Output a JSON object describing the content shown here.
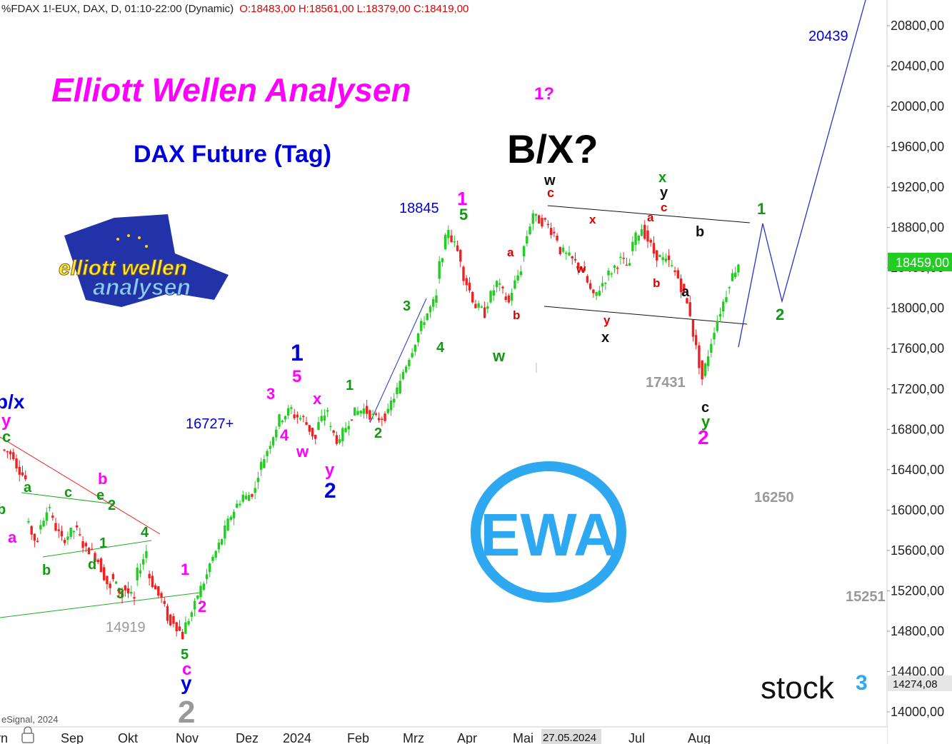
{
  "header": {
    "symbol_info": "%FDAX 1!-EUX, DAX, D, 01:10-22:00 (Dynamic)",
    "ohlc": "O:18483,00 H:18561,00 L:18379,00 C:18419,00",
    "copyright": "eSignal, 2024"
  },
  "titles": {
    "main": "Elliott Wellen Analysen",
    "sub": "DAX Future (Tag)",
    "question": "B/X?",
    "one_question": "1?"
  },
  "logos": {
    "left_line1": "elliott wellen",
    "left_line2": "analysen",
    "ewa": "EWA",
    "stock3": "stock",
    "stock3_sup": "3"
  },
  "price_axis": {
    "ticks": [
      "20800,00",
      "20400,00",
      "20000,00",
      "19600,00",
      "19200,00",
      "18800,00",
      "18400,00",
      "18000,00",
      "17600,00",
      "17200,00",
      "16800,00",
      "16400,00",
      "16000,00",
      "15600,00",
      "15200,00",
      "14800,00",
      "14400,00",
      "14000,00"
    ],
    "current_price": "18459,00",
    "cursor_price": "14274,08"
  },
  "time_axis": {
    "labels": [
      "Sep",
      "Okt",
      "Nov",
      "Dez",
      "2024",
      "Feb",
      "Mrz",
      "Apr",
      "Mai",
      "Jul",
      "Aug"
    ],
    "cursor_date": "27.05.2024"
  },
  "levels": {
    "l20439": "20439",
    "l18845": "18845",
    "l16727": "16727+",
    "l17431": "17431",
    "l16250": "16250",
    "l15251": "15251",
    "l14919": "14919"
  },
  "colors": {
    "up": "#22cc22",
    "down": "#ee2222",
    "magenta": "#ff00ff",
    "blue": "#0000dd",
    "green": "#119911",
    "red": "#dd0000",
    "gray": "#999999",
    "ewa": "#2ea8f0"
  },
  "wave_labels": [
    {
      "t": "b/x",
      "c": "#0000dd",
      "s": 28
    },
    {
      "t": "y",
      "c": "#ff00ff",
      "s": 24
    },
    {
      "t": "c",
      "c": "#119911",
      "s": 22
    },
    {
      "t": "b",
      "c": "#119911",
      "s": 20
    },
    {
      "t": "a",
      "c": "#ff00ff",
      "s": 22
    },
    {
      "t": "a",
      "c": "#119911",
      "s": 20
    },
    {
      "t": "b",
      "c": "#119911",
      "s": 20
    },
    {
      "t": "c",
      "c": "#119911",
      "s": 20
    },
    {
      "t": "d",
      "c": "#119911",
      "s": 20
    },
    {
      "t": "b",
      "c": "#ff00ff",
      "s": 22
    },
    {
      "t": "e",
      "c": "#119911",
      "s": 20
    },
    {
      "t": "2",
      "c": "#119911",
      "s": 20
    },
    {
      "t": "1",
      "c": "#119911",
      "s": 20
    },
    {
      "t": "4",
      "c": "#119911",
      "s": 20
    },
    {
      "t": "3",
      "c": "#119911",
      "s": 20
    },
    {
      "t": "1",
      "c": "#ff00ff",
      "s": 22
    },
    {
      "t": "2",
      "c": "#ff00ff",
      "s": 22
    },
    {
      "t": "5",
      "c": "#119911",
      "s": 20
    },
    {
      "t": "c",
      "c": "#ff00ff",
      "s": 24
    },
    {
      "t": "y",
      "c": "#0000dd",
      "s": 28
    },
    {
      "t": "2",
      "c": "#999999",
      "s": 44
    },
    {
      "t": "3",
      "c": "#ff00ff",
      "s": 22
    },
    {
      "t": "4",
      "c": "#ff00ff",
      "s": 22
    },
    {
      "t": "w",
      "c": "#ff00ff",
      "s": 22
    },
    {
      "t": "5",
      "c": "#ff00ff",
      "s": 24
    },
    {
      "t": "1",
      "c": "#0000dd",
      "s": 32
    },
    {
      "t": "x",
      "c": "#ff00ff",
      "s": 22
    },
    {
      "t": "y",
      "c": "#ff00ff",
      "s": 24
    },
    {
      "t": "2",
      "c": "#0000dd",
      "s": 30
    },
    {
      "t": "1",
      "c": "#119911",
      "s": 20
    },
    {
      "t": "2",
      "c": "#119911",
      "s": 20
    },
    {
      "t": "3",
      "c": "#119911",
      "s": 20
    },
    {
      "t": "4",
      "c": "#119911",
      "s": 20
    },
    {
      "t": "1",
      "c": "#ff00ff",
      "s": 26
    },
    {
      "t": "5",
      "c": "#119911",
      "s": 22
    },
    {
      "t": "a",
      "c": "#dd0000",
      "s": 17
    },
    {
      "t": "b",
      "c": "#dd0000",
      "s": 17
    },
    {
      "t": "w",
      "c": "#119911",
      "s": 22
    },
    {
      "t": "w",
      "c": "#111111",
      "s": 20
    },
    {
      "t": "c",
      "c": "#dd0000",
      "s": 18
    },
    {
      "t": "x",
      "c": "#dd0000",
      "s": 17
    },
    {
      "t": "w",
      "c": "#dd0000",
      "s": 17
    },
    {
      "t": "y",
      "c": "#dd0000",
      "s": 17
    },
    {
      "t": "x",
      "c": "#111111",
      "s": 20
    },
    {
      "t": "x",
      "c": "#119911",
      "s": 20
    },
    {
      "t": "y",
      "c": "#111111",
      "s": 20
    },
    {
      "t": "c",
      "c": "#dd0000",
      "s": 17
    },
    {
      "t": "a",
      "c": "#dd0000",
      "s": 17
    },
    {
      "t": "b",
      "c": "#dd0000",
      "s": 17
    },
    {
      "t": "b",
      "c": "#111111",
      "s": 20
    },
    {
      "t": "a",
      "c": "#111111",
      "s": 20
    },
    {
      "t": "c",
      "c": "#111111",
      "s": 20
    },
    {
      "t": "y",
      "c": "#119911",
      "s": 22
    },
    {
      "t": "2",
      "c": "#ff00ff",
      "s": 28
    },
    {
      "t": "1",
      "c": "#119911",
      "s": 22
    },
    {
      "t": "2",
      "c": "#119911",
      "s": 22
    }
  ],
  "chart_data": {
    "type": "candlestick",
    "title": "DAX Future (Tag)",
    "y_range": [
      13900,
      21100
    ],
    "y_ticks": [
      14000,
      14400,
      14800,
      15200,
      15600,
      16000,
      16400,
      16800,
      17200,
      17600,
      18000,
      18400,
      18800,
      19200,
      19600,
      20000,
      20400,
      20800
    ],
    "x_labels": [
      "Sep",
      "Okt",
      "Nov",
      "Dez",
      "2024",
      "Feb",
      "Mrz",
      "Apr",
      "Mai",
      "Jul",
      "Aug"
    ],
    "price_path": [
      [
        16600,
        16550
      ],
      [
        16500,
        16300
      ],
      [
        15900,
        15650
      ],
      [
        15800,
        16050
      ],
      [
        15950,
        15700
      ],
      [
        15700,
        15800
      ],
      [
        15850,
        15600
      ],
      [
        15650,
        15500
      ],
      [
        15500,
        15200
      ],
      [
        15350,
        15150
      ],
      [
        15250,
        15100
      ],
      [
        15300,
        15600
      ],
      [
        15400,
        15150
      ],
      [
        15200,
        14850
      ],
      [
        14950,
        14750
      ],
      [
        14800,
        15050
      ],
      [
        15100,
        15350
      ],
      [
        15400,
        15650
      ],
      [
        15650,
        15950
      ],
      [
        15950,
        16150
      ],
      [
        16100,
        16200
      ],
      [
        16300,
        16600
      ],
      [
        16600,
        16900
      ],
      [
        16900,
        17000
      ],
      [
        16950,
        16900
      ],
      [
        16900,
        16700
      ],
      [
        16800,
        17000
      ],
      [
        16850,
        16650
      ],
      [
        16700,
        16950
      ],
      [
        16950,
        17000
      ],
      [
        17000,
        16900
      ],
      [
        16900,
        16950
      ],
      [
        17000,
        17250
      ],
      [
        17300,
        17600
      ],
      [
        17600,
        17900
      ],
      [
        17900,
        18100
      ],
      [
        18300,
        18800
      ],
      [
        18750,
        18500
      ],
      [
        18400,
        18100
      ],
      [
        18050,
        17950
      ],
      [
        18000,
        18250
      ],
      [
        18250,
        18050
      ],
      [
        18100,
        18400
      ],
      [
        18500,
        18950
      ],
      [
        18900,
        18850
      ],
      [
        18850,
        18700
      ],
      [
        18600,
        18500
      ],
      [
        18500,
        18400
      ],
      [
        18400,
        18100
      ],
      [
        18100,
        18300
      ],
      [
        18300,
        18450
      ],
      [
        18500,
        18400
      ],
      [
        18600,
        18800
      ],
      [
        18800,
        18550
      ],
      [
        18550,
        18450
      ],
      [
        18500,
        18300
      ],
      [
        18300,
        17950
      ],
      [
        17900,
        17300
      ],
      [
        17300,
        17800
      ],
      [
        17800,
        18150
      ],
      [
        18200,
        18450
      ]
    ],
    "channel": {
      "upper": [
        [
          19000,
          18650
        ],
        [
          18850,
          18000
        ]
      ]
    },
    "projection": [
      "current 18459",
      "1 ~18850",
      "2 ~18050",
      "target 20439"
    ],
    "levels": [
      20439,
      18845,
      16727,
      17431,
      16250,
      15251,
      14919
    ]
  }
}
